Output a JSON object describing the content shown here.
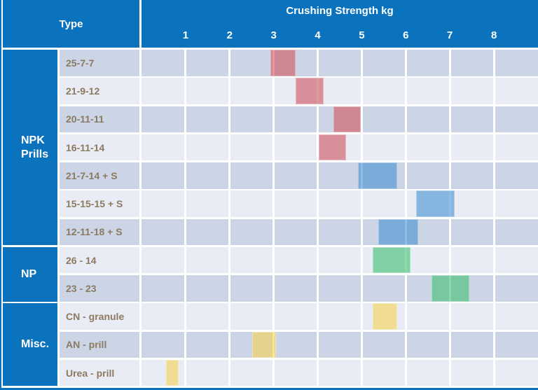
{
  "header": {
    "type_label": "Type",
    "chart_title": "Crushing Strength kg"
  },
  "axis": {
    "ticks": [
      "1",
      "2",
      "3",
      "4",
      "5",
      "6",
      "7",
      "8"
    ],
    "min": 0,
    "max": 9
  },
  "colors": {
    "header_blue": "#0b73bd",
    "row_dark": "#ccd5e5",
    "row_light": "#e9ecf4",
    "label_text": "#8b7a60",
    "gridline": "#ffffff",
    "bars": {
      "red": "rgba(207,82,91,0.60)",
      "blue": "rgba(69,145,209,0.60)",
      "green": "rgba(62,190,114,0.60)",
      "yellow": "rgba(245,210,81,0.60)"
    }
  },
  "groups": [
    {
      "label": "NPK Prills",
      "row_count": 7
    },
    {
      "label": "NP",
      "row_count": 2
    },
    {
      "label": "Misc.",
      "row_count": 3
    }
  ],
  "rows": [
    {
      "label": "25-7-7",
      "group": "NPK Prills",
      "bar": {
        "start": 2.92,
        "end": 3.5,
        "color": "red"
      }
    },
    {
      "label": "21-9-12",
      "group": "NPK Prills",
      "bar": {
        "start": 3.5,
        "end": 4.14,
        "color": "red"
      }
    },
    {
      "label": "20-11-11",
      "group": "NPK Prills",
      "bar": {
        "start": 4.35,
        "end": 4.98,
        "color": "red"
      }
    },
    {
      "label": "16-11-14",
      "group": "NPK Prills",
      "bar": {
        "start": 4.03,
        "end": 4.65,
        "color": "red"
      }
    },
    {
      "label": "21-7-14 + S",
      "group": "NPK Prills",
      "bar": {
        "start": 4.92,
        "end": 5.8,
        "color": "blue"
      }
    },
    {
      "label": "15-15-15 + S",
      "group": "NPK Prills",
      "bar": {
        "start": 6.24,
        "end": 7.11,
        "color": "blue"
      }
    },
    {
      "label": "12-11-18 + S",
      "group": "NPK Prills",
      "bar": {
        "start": 5.38,
        "end": 6.28,
        "color": "blue"
      }
    },
    {
      "label": "26 - 14",
      "group": "NP",
      "bar": {
        "start": 5.24,
        "end": 6.1,
        "color": "green"
      }
    },
    {
      "label": "23 - 23",
      "group": "NP",
      "bar": {
        "start": 6.59,
        "end": 7.44,
        "color": "green"
      }
    },
    {
      "label": "CN - granule",
      "group": "Misc.",
      "bar": {
        "start": 5.24,
        "end": 5.8,
        "color": "yellow"
      }
    },
    {
      "label": "AN - prill",
      "group": "Misc.",
      "bar": {
        "start": 2.51,
        "end": 3.06,
        "color": "yellow"
      }
    },
    {
      "label": "Urea - prill",
      "group": "Misc.",
      "bar": {
        "start": 0.55,
        "end": 0.84,
        "color": "yellow"
      }
    }
  ],
  "chart_data": {
    "type": "bar",
    "subtype": "horizontal-range-bars",
    "title": "Crushing Strength kg",
    "xlabel": "Crushing Strength kg",
    "ylabel": "Type",
    "xlim": [
      0,
      9
    ],
    "xticks": [
      1,
      2,
      3,
      4,
      5,
      6,
      7,
      8
    ],
    "grid": true,
    "categories": [
      "25-7-7",
      "21-9-12",
      "20-11-11",
      "16-11-14",
      "21-7-14 + S",
      "15-15-15 + S",
      "12-11-18 + S",
      "26 - 14",
      "23 - 23",
      "CN - granule",
      "AN - prill",
      "Urea - prill"
    ],
    "category_groups": [
      "NPK Prills",
      "NPK Prills",
      "NPK Prills",
      "NPK Prills",
      "NPK Prills",
      "NPK Prills",
      "NPK Prills",
      "NP",
      "NP",
      "Misc.",
      "Misc.",
      "Misc."
    ],
    "ranges_kg": [
      [
        2.9,
        3.5
      ],
      [
        3.5,
        4.15
      ],
      [
        4.35,
        5.0
      ],
      [
        4.05,
        4.65
      ],
      [
        4.9,
        5.8
      ],
      [
        6.25,
        7.1
      ],
      [
        5.4,
        6.3
      ],
      [
        5.25,
        6.1
      ],
      [
        6.6,
        7.45
      ],
      [
        5.25,
        5.8
      ],
      [
        2.5,
        3.05
      ],
      [
        0.55,
        0.85
      ]
    ],
    "bar_color_by_category": [
      "red",
      "red",
      "red",
      "red",
      "blue",
      "blue",
      "blue",
      "green",
      "green",
      "yellow",
      "yellow",
      "yellow"
    ]
  }
}
